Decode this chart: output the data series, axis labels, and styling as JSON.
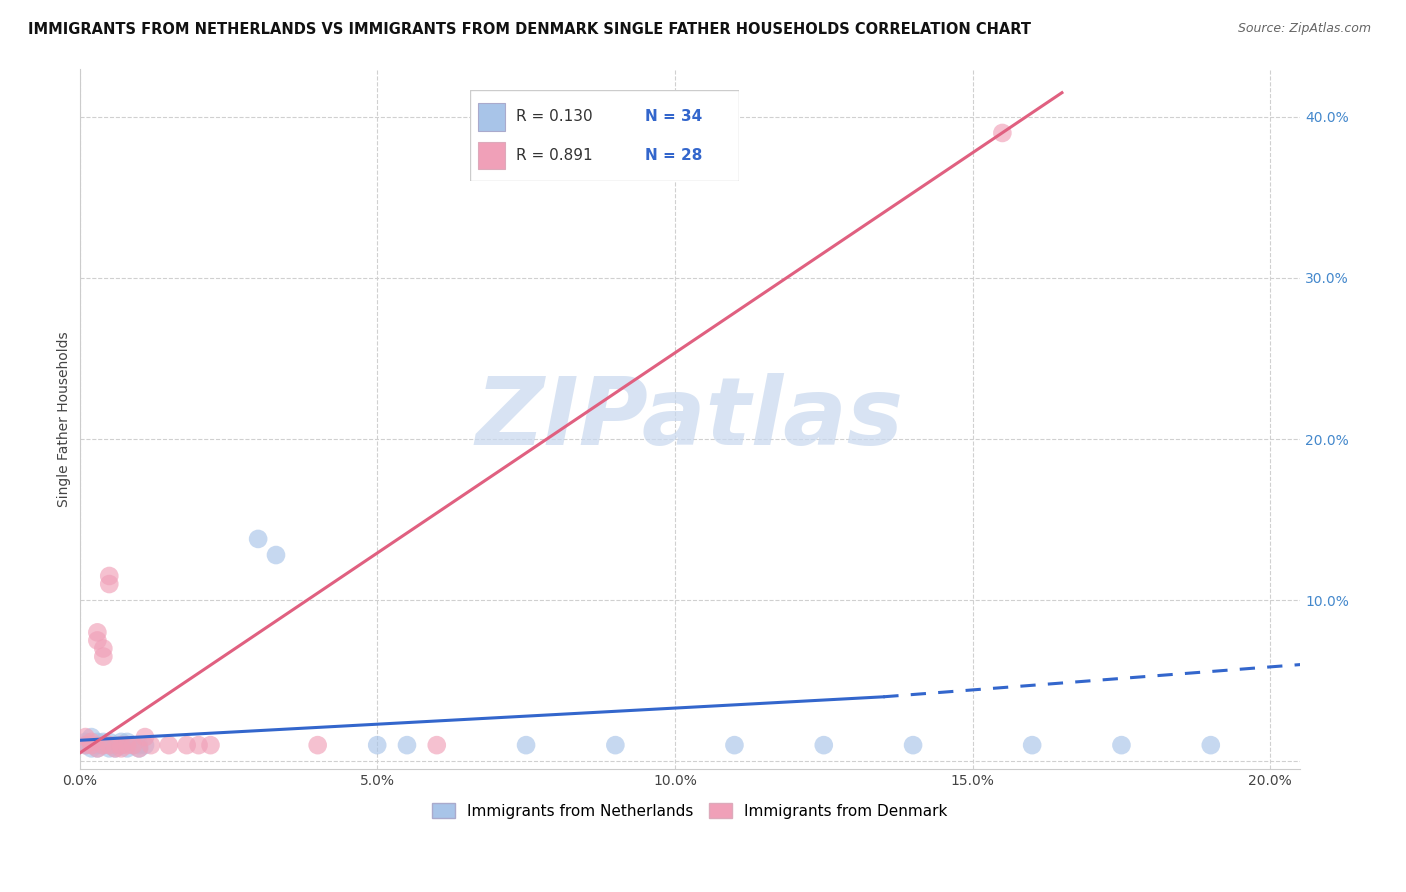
{
  "title": "IMMIGRANTS FROM NETHERLANDS VS IMMIGRANTS FROM DENMARK SINGLE FATHER HOUSEHOLDS CORRELATION CHART",
  "source": "Source: ZipAtlas.com",
  "ylabel": "Single Father Households",
  "xlim": [
    0.0,
    0.205
  ],
  "ylim": [
    -0.005,
    0.43
  ],
  "x_ticks": [
    0.0,
    0.05,
    0.1,
    0.15,
    0.2
  ],
  "y_ticks": [
    0.0,
    0.1,
    0.2,
    0.3,
    0.4
  ],
  "y_ticks_right": [
    0.1,
    0.2,
    0.3,
    0.4
  ],
  "legend_R_blue": "R = 0.130",
  "legend_N_blue": "N = 34",
  "legend_R_pink": "R = 0.891",
  "legend_N_pink": "N = 28",
  "blue_color": "#a8c4e8",
  "pink_color": "#f0a0b8",
  "blue_line_color": "#3366cc",
  "pink_line_color": "#e06080",
  "blue_scatter": [
    [
      0.001,
      0.01
    ],
    [
      0.001,
      0.012
    ],
    [
      0.002,
      0.008
    ],
    [
      0.002,
      0.015
    ],
    [
      0.003,
      0.01
    ],
    [
      0.003,
      0.012
    ],
    [
      0.003,
      0.008
    ],
    [
      0.004,
      0.01
    ],
    [
      0.004,
      0.012
    ],
    [
      0.005,
      0.01
    ],
    [
      0.005,
      0.008
    ],
    [
      0.005,
      0.012
    ],
    [
      0.006,
      0.01
    ],
    [
      0.006,
      0.008
    ],
    [
      0.007,
      0.01
    ],
    [
      0.007,
      0.012
    ],
    [
      0.008,
      0.008
    ],
    [
      0.008,
      0.012
    ],
    [
      0.009,
      0.01
    ],
    [
      0.01,
      0.01
    ],
    [
      0.01,
      0.008
    ],
    [
      0.011,
      0.01
    ],
    [
      0.03,
      0.138
    ],
    [
      0.033,
      0.128
    ],
    [
      0.05,
      0.01
    ],
    [
      0.055,
      0.01
    ],
    [
      0.075,
      0.01
    ],
    [
      0.09,
      0.01
    ],
    [
      0.11,
      0.01
    ],
    [
      0.125,
      0.01
    ],
    [
      0.14,
      0.01
    ],
    [
      0.16,
      0.01
    ],
    [
      0.175,
      0.01
    ],
    [
      0.19,
      0.01
    ]
  ],
  "pink_scatter": [
    [
      0.001,
      0.01
    ],
    [
      0.001,
      0.015
    ],
    [
      0.002,
      0.012
    ],
    [
      0.002,
      0.01
    ],
    [
      0.003,
      0.075
    ],
    [
      0.003,
      0.08
    ],
    [
      0.003,
      0.008
    ],
    [
      0.004,
      0.065
    ],
    [
      0.004,
      0.07
    ],
    [
      0.004,
      0.01
    ],
    [
      0.005,
      0.11
    ],
    [
      0.005,
      0.115
    ],
    [
      0.005,
      0.01
    ],
    [
      0.006,
      0.008
    ],
    [
      0.007,
      0.008
    ],
    [
      0.007,
      0.01
    ],
    [
      0.008,
      0.01
    ],
    [
      0.009,
      0.01
    ],
    [
      0.01,
      0.008
    ],
    [
      0.011,
      0.015
    ],
    [
      0.012,
      0.01
    ],
    [
      0.015,
      0.01
    ],
    [
      0.018,
      0.01
    ],
    [
      0.02,
      0.01
    ],
    [
      0.022,
      0.01
    ],
    [
      0.04,
      0.01
    ],
    [
      0.06,
      0.01
    ],
    [
      0.155,
      0.39
    ]
  ],
  "blue_solid_line": [
    [
      0.0,
      0.013
    ],
    [
      0.135,
      0.04
    ]
  ],
  "blue_dashed_line": [
    [
      0.135,
      0.04
    ],
    [
      0.205,
      0.06
    ]
  ],
  "pink_line": [
    [
      0.0,
      0.005
    ],
    [
      0.165,
      0.415
    ]
  ],
  "watermark_text": "ZIPatlas",
  "watermark_color": "#c8d8ee",
  "watermark_alpha": 0.7,
  "background_color": "#ffffff",
  "grid_color": "#d0d0d0",
  "spine_color": "#cccccc",
  "title_fontsize": 10.5,
  "source_fontsize": 9,
  "axis_label_fontsize": 10,
  "tick_fontsize": 10,
  "legend_fontsize": 11,
  "scatter_size": 180,
  "scatter_alpha": 0.65
}
